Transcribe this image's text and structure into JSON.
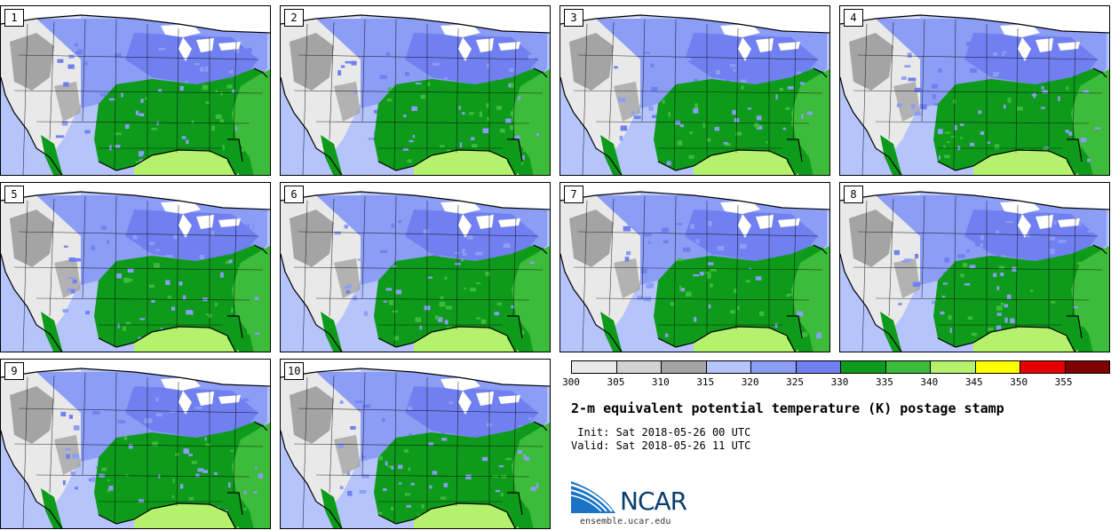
{
  "panels": [
    {
      "label": "1"
    },
    {
      "label": "2"
    },
    {
      "label": "3"
    },
    {
      "label": "4"
    },
    {
      "label": "5"
    },
    {
      "label": "6"
    },
    {
      "label": "7"
    },
    {
      "label": "8"
    },
    {
      "label": "9"
    },
    {
      "label": "10"
    }
  ],
  "colorbar": {
    "colors": [
      "#e9e9e9",
      "#d2d2d2",
      "#a4a4a4",
      "#b5c4fb",
      "#8c9df6",
      "#7180f0",
      "#0e9a1b",
      "#3dbb3a",
      "#b4f26e",
      "#ffff00",
      "#e80000",
      "#7f0000"
    ],
    "ticks": [
      "300",
      "305",
      "310",
      "315",
      "320",
      "325",
      "330",
      "335",
      "340",
      "345",
      "350",
      "355"
    ]
  },
  "title": "2-m equivalent potential temperature (K) postage stamp",
  "init_line": " Init: Sat 2018-05-26 00 UTC",
  "valid_line": "Valid: Sat 2018-05-26 11 UTC",
  "logo": {
    "text": "NCAR",
    "website": "ensemble.ucar.edu"
  },
  "map_colors": {
    "ocean_west": "#b5c4fb",
    "land_west": "#e9e9e9",
    "mountain_gray": "#a4a4a4",
    "plains_blue": "#8c9df6",
    "east_blue": "#7180f0",
    "southeast_green": "#0e9a1b",
    "atlantic_green": "#3dbb3a",
    "gulf_lime": "#b4f26e",
    "canada_white": "#ffffff",
    "lakes_white": "#ffffff"
  }
}
